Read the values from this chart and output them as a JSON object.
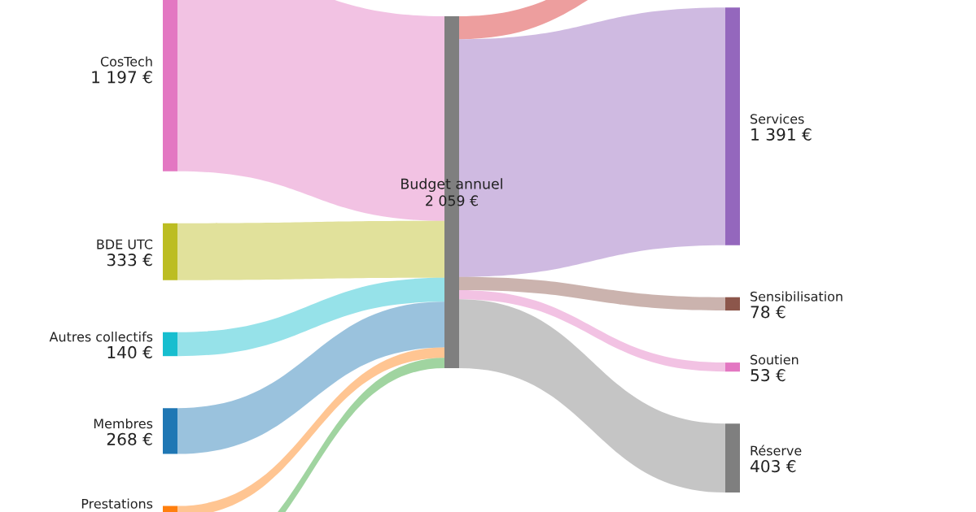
{
  "chart_data": {
    "type": "other",
    "categories": [
      "CosTech",
      "BDE UTC",
      "Autres collectifs",
      "Membres",
      "Prestations",
      null,
      "Budget annuel",
      null,
      "Services",
      "Sensibilisation",
      "Soutien",
      "Réserve"
    ],
    "values": [
      1197,
      333,
      140,
      268,
      null,
      null,
      2059,
      null,
      1391,
      78,
      53,
      403
    ],
    "value_labels": [
      "1 197 €",
      "333 €",
      "140 €",
      "268 €",
      null,
      null,
      "2 059 €",
      null,
      "1 391 €",
      "78 €",
      "53 €",
      "403 €"
    ],
    "colors": [
      "#e377c2",
      "#bcbd22",
      "#17becf",
      "#1f77b4",
      "#ff7f0e",
      "#2ca02c",
      "#7f7f7f",
      "#d62728",
      "#9467bd",
      "#8c564b",
      "#e377c2",
      "#7f7f7f"
    ]
  }
}
